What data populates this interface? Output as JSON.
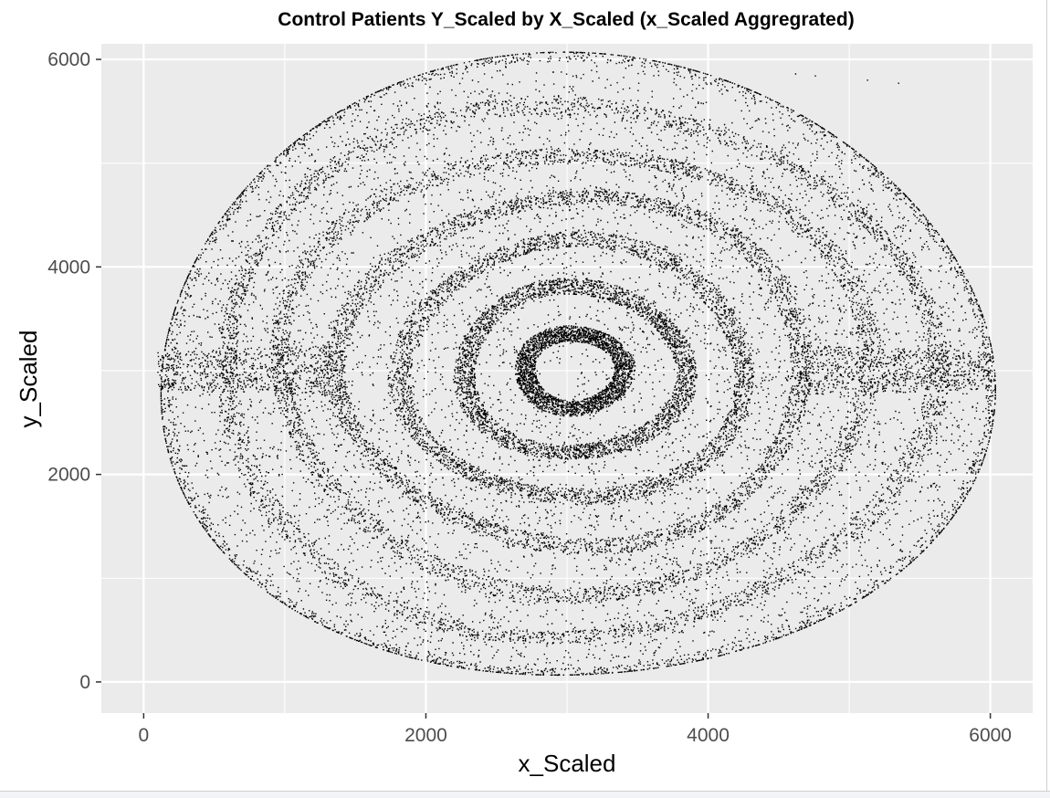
{
  "chart_data": {
    "type": "scatter",
    "title": "Control Patients Y_Scaled by X_Scaled (x_Scaled Aggregrated)",
    "xlabel": "x_Scaled",
    "ylabel": "y_Scaled",
    "xlim": [
      -300,
      6300
    ],
    "ylim": [
      -300,
      6150
    ],
    "x_ticks": [
      0,
      2000,
      4000,
      6000
    ],
    "y_ticks": [
      0,
      2000,
      4000,
      6000
    ],
    "x_tick_labels": [
      "0",
      "2000",
      "4000",
      "6000"
    ],
    "y_tick_labels": [
      "0",
      "2000",
      "4000",
      "6000"
    ],
    "grid": true,
    "legend": "none",
    "point_color": "#000000",
    "panel_color": "#ebebeb",
    "grid_color": "#ffffff",
    "distribution": {
      "shape": "concentric-ellipses",
      "center": [
        3050,
        3000
      ],
      "semi_axis_x": 2950,
      "semi_axis_y": 3000,
      "ring_count": 7,
      "approx_points": 26000
    },
    "outlier_points": [
      {
        "x": 4620,
        "y": 5860
      },
      {
        "x": 4760,
        "y": 5840
      },
      {
        "x": 5130,
        "y": 5800
      },
      {
        "x": 5350,
        "y": 5770
      }
    ]
  }
}
